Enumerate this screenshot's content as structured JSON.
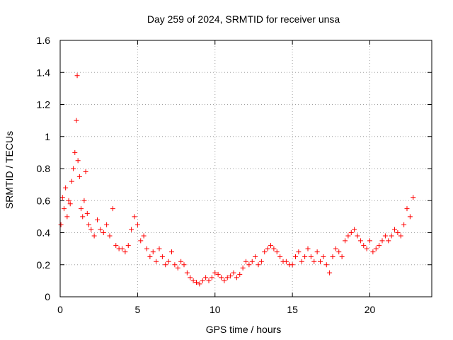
{
  "chart_data": {
    "type": "scatter",
    "title": "Day 259 of 2024, SRMTID for receiver unsa",
    "xlabel": "GPS time / hours",
    "ylabel": "SRMTID / TECUs",
    "xlim": [
      0,
      24
    ],
    "ylim": [
      0,
      1.6
    ],
    "x_ticks": [
      0,
      5,
      10,
      15,
      20
    ],
    "x_tick_labels": [
      "0",
      "5",
      "10",
      "15",
      "20"
    ],
    "y_ticks": [
      0,
      0.2,
      0.4,
      0.6,
      0.8,
      1,
      1.2,
      1.4,
      1.6
    ],
    "y_tick_labels": [
      "0",
      "0.2",
      "0.4",
      "0.6",
      "0.8",
      "1",
      "1.2",
      "1.4",
      "1.6"
    ],
    "grid": true,
    "marker": "+",
    "colors": {
      "series": "#ff0000",
      "axes": "#000000",
      "grid": "#a0a0a0"
    },
    "series": [
      {
        "name": "SRMTID",
        "x": [
          0.05,
          0.15,
          0.25,
          0.35,
          0.45,
          0.55,
          0.65,
          0.75,
          0.85,
          0.95,
          1.05,
          1.1,
          1.15,
          1.25,
          1.35,
          1.45,
          1.55,
          1.65,
          1.75,
          1.85,
          2.0,
          2.2,
          2.4,
          2.6,
          2.8,
          3.0,
          3.2,
          3.4,
          3.6,
          3.8,
          4.0,
          4.2,
          4.4,
          4.6,
          4.8,
          5.0,
          5.2,
          5.4,
          5.6,
          5.8,
          6.0,
          6.2,
          6.4,
          6.6,
          6.8,
          7.0,
          7.2,
          7.4,
          7.6,
          7.8,
          8.0,
          8.2,
          8.4,
          8.6,
          8.8,
          9.0,
          9.2,
          9.4,
          9.6,
          9.8,
          10.0,
          10.2,
          10.4,
          10.6,
          10.8,
          11.0,
          11.2,
          11.4,
          11.6,
          11.8,
          12.0,
          12.2,
          12.4,
          12.6,
          12.8,
          13.0,
          13.2,
          13.4,
          13.6,
          13.8,
          14.0,
          14.2,
          14.4,
          14.6,
          14.8,
          15.0,
          15.2,
          15.4,
          15.6,
          15.8,
          16.0,
          16.2,
          16.4,
          16.6,
          16.8,
          17.0,
          17.2,
          17.4,
          17.6,
          17.8,
          18.0,
          18.2,
          18.4,
          18.6,
          18.8,
          19.0,
          19.2,
          19.4,
          19.6,
          19.8,
          20.0,
          20.2,
          20.4,
          20.6,
          20.8,
          21.0,
          21.2,
          21.4,
          21.6,
          21.8,
          22.0,
          22.2,
          22.4,
          22.6,
          22.8
        ],
        "y": [
          0.45,
          0.62,
          0.55,
          0.68,
          0.5,
          0.6,
          0.58,
          0.72,
          0.8,
          0.9,
          1.1,
          1.38,
          0.85,
          0.75,
          0.55,
          0.5,
          0.6,
          0.78,
          0.52,
          0.45,
          0.42,
          0.38,
          0.48,
          0.42,
          0.4,
          0.45,
          0.38,
          0.55,
          0.32,
          0.3,
          0.3,
          0.28,
          0.32,
          0.42,
          0.5,
          0.45,
          0.35,
          0.38,
          0.3,
          0.25,
          0.28,
          0.22,
          0.3,
          0.25,
          0.2,
          0.22,
          0.28,
          0.2,
          0.18,
          0.22,
          0.2,
          0.15,
          0.12,
          0.1,
          0.09,
          0.08,
          0.1,
          0.12,
          0.1,
          0.12,
          0.15,
          0.14,
          0.12,
          0.1,
          0.12,
          0.13,
          0.15,
          0.12,
          0.14,
          0.18,
          0.22,
          0.2,
          0.22,
          0.25,
          0.2,
          0.22,
          0.28,
          0.3,
          0.32,
          0.3,
          0.28,
          0.25,
          0.22,
          0.22,
          0.2,
          0.2,
          0.25,
          0.28,
          0.22,
          0.25,
          0.3,
          0.25,
          0.22,
          0.28,
          0.22,
          0.25,
          0.2,
          0.15,
          0.25,
          0.3,
          0.28,
          0.25,
          0.35,
          0.38,
          0.4,
          0.42,
          0.38,
          0.35,
          0.32,
          0.3,
          0.35,
          0.28,
          0.3,
          0.32,
          0.35,
          0.38,
          0.35,
          0.38,
          0.42,
          0.4,
          0.38,
          0.45,
          0.55,
          0.5,
          0.62
        ]
      }
    ]
  }
}
